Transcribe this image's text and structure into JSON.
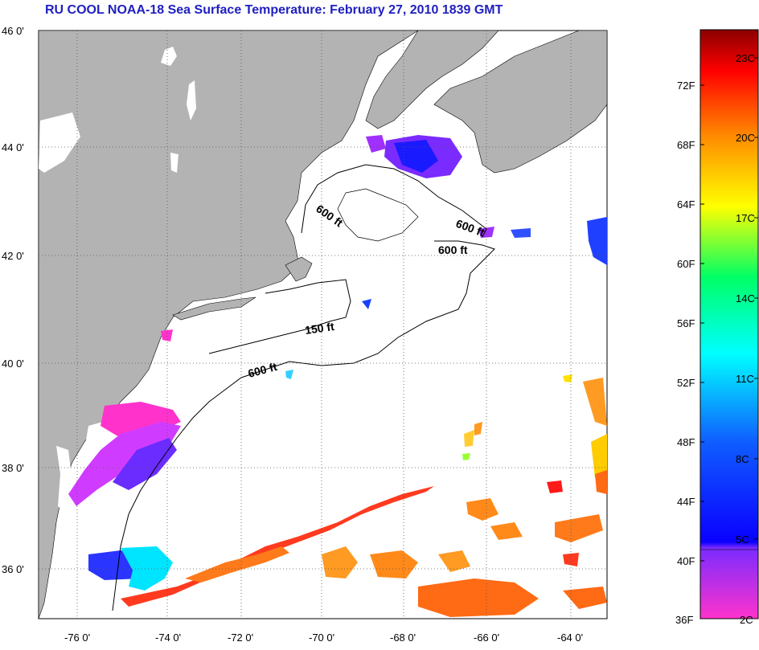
{
  "title": "RU COOL  NOAA-18  Sea Surface Temperature:  February 27, 2010 1839 GMT",
  "map": {
    "latitude_ticks": [
      "46 0'",
      "44 0'",
      "42 0'",
      "40 0'",
      "38 0'",
      "36 0'"
    ],
    "longitude_ticks": [
      "-76 0'",
      "-74 0'",
      "-72 0'",
      "-70 0'",
      "-68 0'",
      "-66 0'",
      "-64 0'"
    ],
    "depth_contour_labels": [
      "600 ft",
      "600 ft",
      "600 ft",
      "150 ft",
      "600 ft"
    ],
    "colors": {
      "land": "#b3b3b3",
      "water": "#ffffff",
      "contour": "#000000",
      "title": "#1f1fbf"
    }
  },
  "colorbar": {
    "fahrenheit_labels": [
      "72F",
      "68F",
      "64F",
      "60F",
      "56F",
      "52F",
      "48F",
      "44F",
      "40F",
      "36F"
    ],
    "celsius_labels": [
      "23C",
      "20C",
      "17C",
      "14C",
      "11C",
      "8C",
      "5C",
      "2C"
    ],
    "gradient": [
      "#8b0000",
      "#ff0000",
      "#ff8000",
      "#ffff00",
      "#00ff00",
      "#00ffff",
      "#0070ff",
      "#0000ff",
      "#8000ff",
      "#ff00ff"
    ]
  }
}
